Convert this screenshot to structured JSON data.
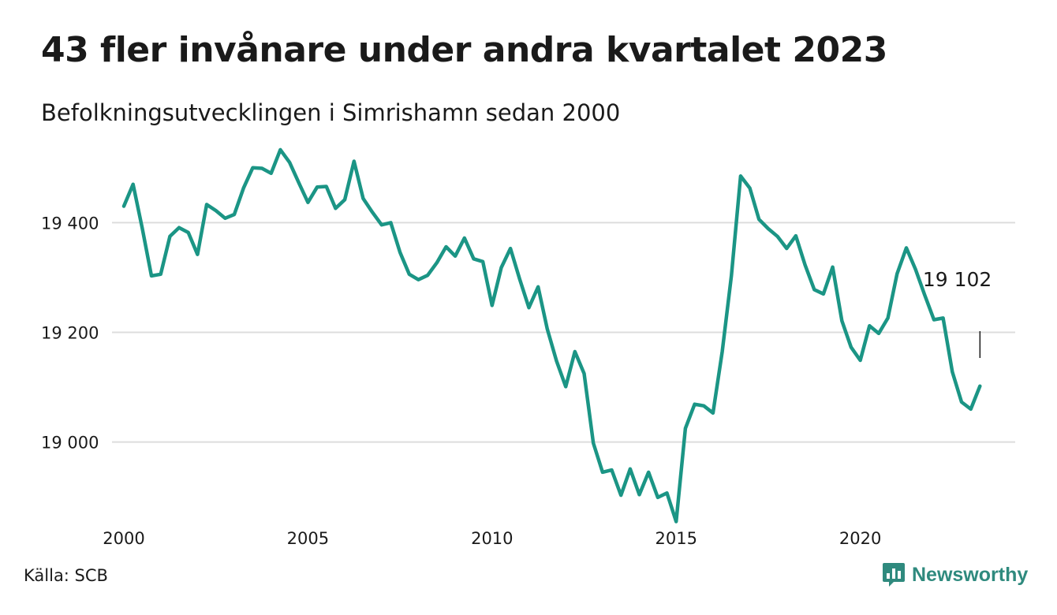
{
  "header": {
    "title": "43 fler invånare under andra kvartalet 2023",
    "subtitle": "Befolkningsutvecklingen i Simrishamn sedan 2000"
  },
  "footer": {
    "source": "Källa: SCB",
    "brand": "Newsworthy",
    "brand_icon": "bar-chart-speech-bubble-icon"
  },
  "colors": {
    "line": "#1b9585",
    "grid": "#dddddd",
    "brand": "#2f8a7e"
  },
  "chart_data": {
    "type": "line",
    "title": "43 fler invånare under andra kvartalet 2023",
    "subtitle": "Befolkningsutvecklingen i Simrishamn sedan 2000",
    "xlabel": "",
    "ylabel": "",
    "xlim": [
      2000,
      2023.5
    ],
    "ylim": [
      18850,
      19540
    ],
    "x_ticks": [
      {
        "value": 2000,
        "label": "2000"
      },
      {
        "value": 2005,
        "label": "2005"
      },
      {
        "value": 2010,
        "label": "2010"
      },
      {
        "value": 2015,
        "label": "2015"
      },
      {
        "value": 2020,
        "label": "2020"
      }
    ],
    "y_ticks": [
      {
        "value": 19000,
        "label": "19 000"
      },
      {
        "value": 19200,
        "label": "19 200"
      },
      {
        "value": 19400,
        "label": "19 400"
      }
    ],
    "grid": true,
    "legend": "none",
    "series": [
      {
        "x": [
          2000.0,
          2000.25,
          2000.5,
          2000.75,
          2001.0,
          2001.25,
          2001.5,
          2001.75,
          2002.0,
          2002.25,
          2002.5,
          2002.75,
          2003.0,
          2003.25,
          2003.5,
          2003.75,
          2004.0,
          2004.25,
          2004.5,
          2004.75,
          2005.0,
          2005.25,
          2005.5,
          2005.75,
          2006.0,
          2006.25,
          2006.5,
          2006.75,
          2007.0,
          2007.25,
          2007.5,
          2007.75,
          2008.0,
          2008.25,
          2008.5,
          2008.75,
          2009.0,
          2009.25,
          2009.5,
          2009.75,
          2010.0,
          2010.25,
          2010.5,
          2010.75,
          2011.0,
          2011.25,
          2011.5,
          2011.75,
          2012.0,
          2012.25,
          2012.5,
          2012.75,
          2013.0,
          2013.25,
          2013.5,
          2013.75,
          2014.0,
          2014.25,
          2014.5,
          2014.75,
          2015.0,
          2015.25,
          2015.5,
          2015.75,
          2016.0,
          2016.25,
          2016.5,
          2016.75,
          2017.0,
          2017.25,
          2017.5,
          2017.75,
          2018.0,
          2018.25,
          2018.5,
          2018.75,
          2019.0,
          2019.25,
          2019.5,
          2019.75,
          2020.0,
          2020.25,
          2020.5,
          2020.75,
          2021.0,
          2021.25,
          2021.5,
          2021.75,
          2022.0,
          2022.25,
          2022.5,
          2022.75,
          2023.0,
          2023.25
        ],
        "y": [
          19430,
          19470,
          19390,
          19303,
          19306,
          19375,
          19391,
          19382,
          19342,
          19433,
          19422,
          19408,
          19415,
          19463,
          19500,
          19499,
          19490,
          19533,
          19510,
          19473,
          19437,
          19465,
          19466,
          19426,
          19442,
          19512,
          19444,
          19419,
          19396,
          19400,
          19346,
          19306,
          19296,
          19304,
          19327,
          19356,
          19339,
          19372,
          19334,
          19329,
          19249,
          19318,
          19353,
          19297,
          19245,
          19283,
          19206,
          19148,
          19101,
          19165,
          19125,
          18998,
          18945,
          18949,
          18903,
          18951,
          18904,
          18945,
          18899,
          18907,
          18855,
          19025,
          19069,
          19066,
          19053,
          19165,
          19303,
          19485,
          19463,
          19406,
          19389,
          19375,
          19353,
          19376,
          19323,
          19278,
          19270,
          19319,
          19221,
          19173,
          19149,
          19212,
          19198,
          19226,
          19307,
          19354,
          19315,
          19268,
          19223,
          19226,
          19128,
          19073,
          19060,
          19102
        ]
      }
    ],
    "annotations": [
      {
        "text": "19 102",
        "x": 2023.25,
        "y": 19102
      }
    ]
  }
}
